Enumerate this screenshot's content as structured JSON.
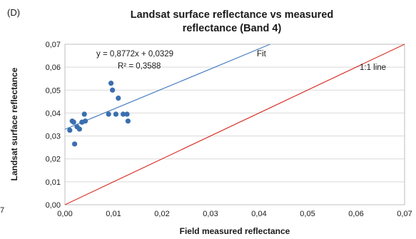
{
  "panel_label": "(D)",
  "edge_mark": "7",
  "chart_data": {
    "type": "scatter",
    "title_lines": [
      "Landsat surface reflectance vs measured",
      "reflectance (Band 4)"
    ],
    "xlabel": "Field measured reflectance",
    "ylabel": "Landsat surface reflectance",
    "xlim": [
      0,
      0.07
    ],
    "ylim": [
      0,
      0.07
    ],
    "x_ticks": [
      "0,00",
      "0,01",
      "0,02",
      "0,03",
      "0,04",
      "0,05",
      "0,06",
      "0,07"
    ],
    "y_ticks": [
      "0,00",
      "0,01",
      "0,02",
      "0,03",
      "0,04",
      "0,05",
      "0,06",
      "0,07"
    ],
    "grid": "horizontal",
    "series": [
      {
        "color": "#3a6fb0",
        "points": [
          {
            "x": 0.001,
            "y": 0.0325
          },
          {
            "x": 0.0015,
            "y": 0.0365
          },
          {
            "x": 0.0018,
            "y": 0.036
          },
          {
            "x": 0.002,
            "y": 0.0265
          },
          {
            "x": 0.0025,
            "y": 0.034
          },
          {
            "x": 0.003,
            "y": 0.033
          },
          {
            "x": 0.0035,
            "y": 0.036
          },
          {
            "x": 0.004,
            "y": 0.0395
          },
          {
            "x": 0.0042,
            "y": 0.0365
          },
          {
            "x": 0.009,
            "y": 0.0395
          },
          {
            "x": 0.0095,
            "y": 0.053
          },
          {
            "x": 0.0098,
            "y": 0.05
          },
          {
            "x": 0.0105,
            "y": 0.0395
          },
          {
            "x": 0.011,
            "y": 0.0465
          },
          {
            "x": 0.012,
            "y": 0.0395
          },
          {
            "x": 0.0128,
            "y": 0.0395
          },
          {
            "x": 0.013,
            "y": 0.0365
          }
        ]
      }
    ],
    "fit_line": {
      "label": "Fit",
      "equation": "y = 0,8772x + 0,0329",
      "r2": "R² = 0,3588",
      "slope": 0.8772,
      "intercept": 0.0329,
      "color": "#4a7ec2"
    },
    "one_to_one_line": {
      "label": "1:1 line",
      "color": "#d9342b"
    }
  }
}
